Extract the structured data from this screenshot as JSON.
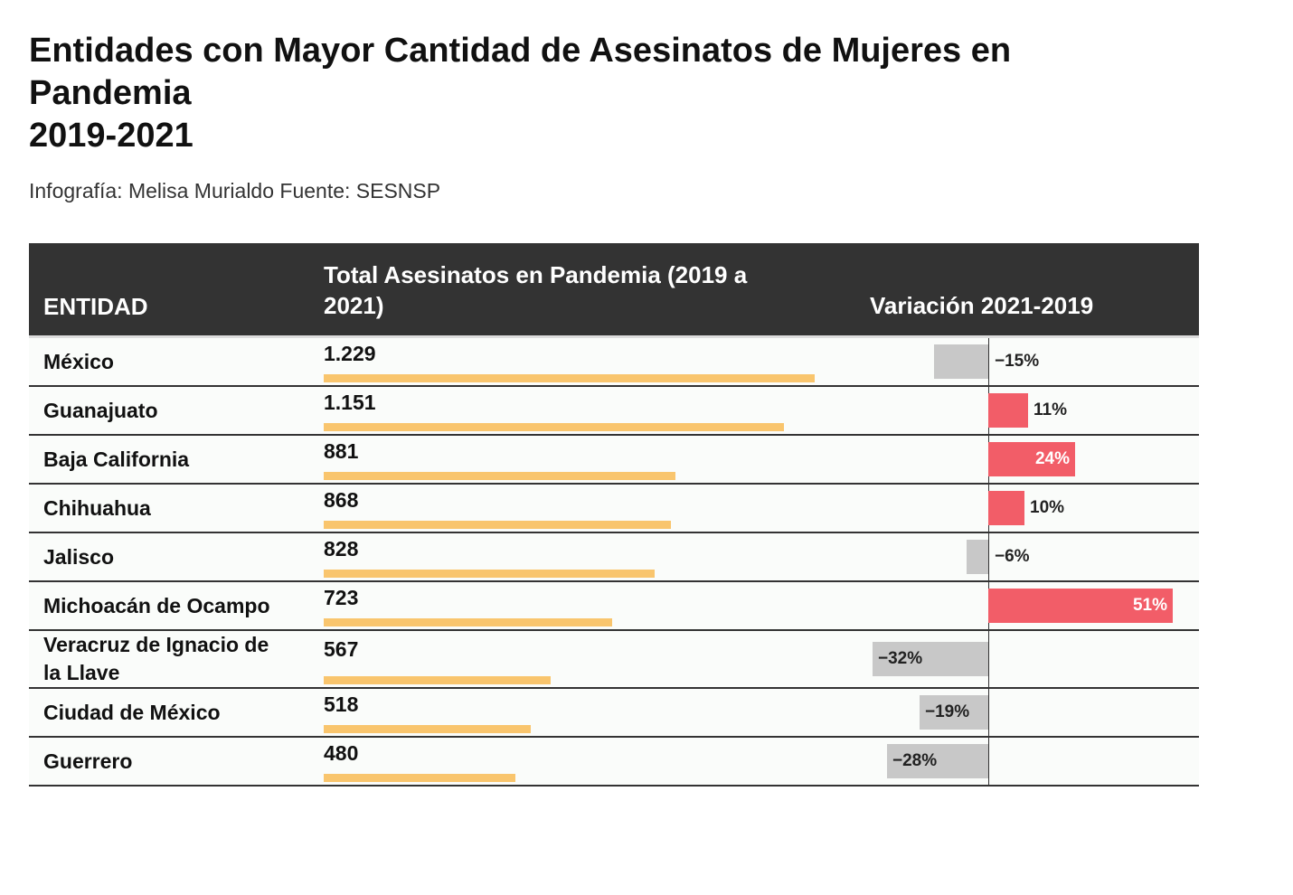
{
  "header": {
    "title": "Entidades con Mayor Cantidad de Asesinatos de Mujeres en Pandemia\n2019-2021",
    "subtitle": "Infografía: Melisa Murialdo Fuente: SESNSP"
  },
  "table": {
    "columns": [
      "ENTIDAD",
      "Total Asesinatos en Pandemia (2019 a 2021)",
      "Variación 2021-2019"
    ],
    "total_color": "#f9c56d",
    "positive_color": "#f25d68",
    "negative_color": "#c8c8c8",
    "rows": [
      {
        "entity": "México",
        "total": 1229,
        "total_label": "1.229",
        "variation": -15,
        "variation_label": "−15%"
      },
      {
        "entity": "Guanajuato",
        "total": 1151,
        "total_label": "1.151",
        "variation": 11,
        "variation_label": "11%"
      },
      {
        "entity": "Baja California",
        "total": 881,
        "total_label": "881",
        "variation": 24,
        "variation_label": "24%"
      },
      {
        "entity": "Chihuahua",
        "total": 868,
        "total_label": "868",
        "variation": 10,
        "variation_label": "10%"
      },
      {
        "entity": "Jalisco",
        "total": 828,
        "total_label": "828",
        "variation": -6,
        "variation_label": "−6%"
      },
      {
        "entity": "Michoacán de Ocampo",
        "total": 723,
        "total_label": "723",
        "variation": 51,
        "variation_label": "51%"
      },
      {
        "entity": "Veracruz de Ignacio de la Llave",
        "total": 567,
        "total_label": "567",
        "variation": -32,
        "variation_label": "−32%"
      },
      {
        "entity": "Ciudad de México",
        "total": 518,
        "total_label": "518",
        "variation": -19,
        "variation_label": "−19%"
      },
      {
        "entity": "Guerrero",
        "total": 480,
        "total_label": "480",
        "variation": -28,
        "variation_label": "−28%"
      }
    ]
  }
}
